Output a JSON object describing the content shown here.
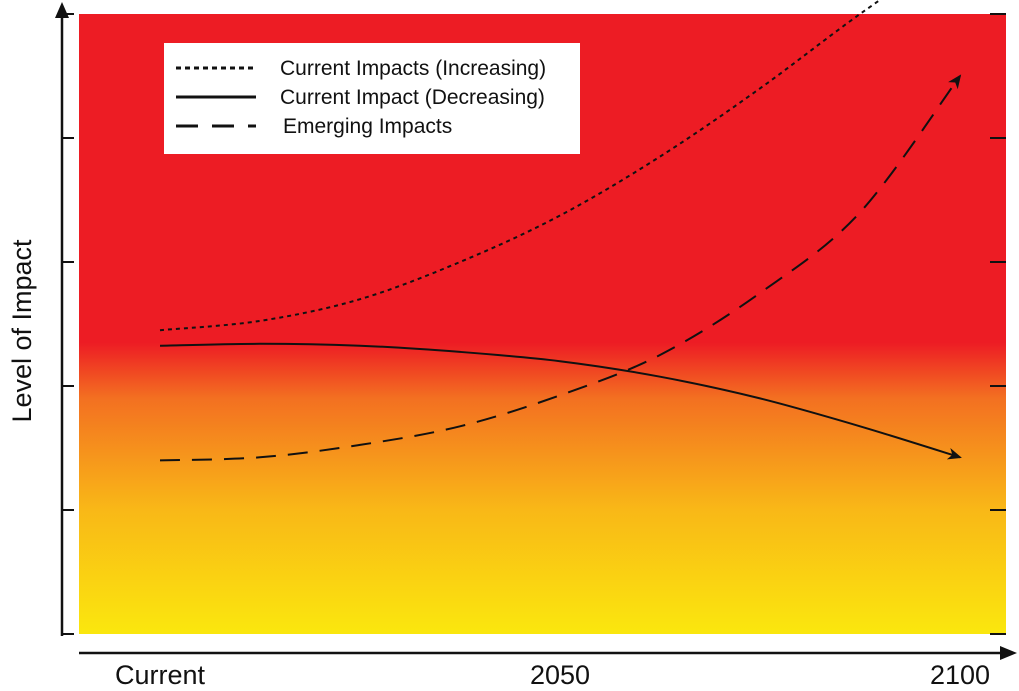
{
  "chart_data": {
    "type": "line",
    "title": "",
    "xlabel": "",
    "ylabel": "Level of Impact",
    "categories": [
      "Current",
      "2050",
      "2100"
    ],
    "x_domain": [
      0,
      2
    ],
    "y_domain": [
      0,
      100
    ],
    "y_tick_count": 5,
    "grid": false,
    "legend_position": "top-left",
    "background_gradient": [
      {
        "level": 47,
        "color": "#ed1c24"
      },
      {
        "level": 38,
        "color": "#f37021"
      },
      {
        "level": 20,
        "color": "#f9b817"
      },
      {
        "level": 0,
        "color": "#fae70e"
      }
    ],
    "series": [
      {
        "name": "Current Impacts (Increasing)",
        "line_style": "dotted",
        "color": "#111111",
        "arrow": true,
        "points": [
          [
            0,
            49
          ],
          [
            0.25,
            50.5
          ],
          [
            0.5,
            54
          ],
          [
            0.75,
            60
          ],
          [
            1,
            67.5
          ],
          [
            1.25,
            77
          ],
          [
            1.5,
            88
          ],
          [
            1.75,
            100
          ],
          [
            2,
            111
          ]
        ]
      },
      {
        "name": "Current Impact (Decreasing)",
        "line_style": "solid",
        "color": "#111111",
        "arrow": true,
        "points": [
          [
            0,
            46.5
          ],
          [
            0.25,
            46.8
          ],
          [
            0.5,
            46.5
          ],
          [
            0.75,
            45.5
          ],
          [
            1,
            44
          ],
          [
            1.25,
            41.5
          ],
          [
            1.5,
            38
          ],
          [
            1.75,
            33.5
          ],
          [
            2,
            28.5
          ]
        ]
      },
      {
        "name": "Emerging Impacts",
        "line_style": "dashed",
        "color": "#111111",
        "arrow": true,
        "points": [
          [
            0,
            28
          ],
          [
            0.25,
            28.5
          ],
          [
            0.5,
            30.5
          ],
          [
            0.75,
            33.5
          ],
          [
            1,
            38.5
          ],
          [
            1.25,
            45
          ],
          [
            1.5,
            55
          ],
          [
            1.75,
            68
          ],
          [
            2,
            90
          ]
        ]
      }
    ]
  }
}
